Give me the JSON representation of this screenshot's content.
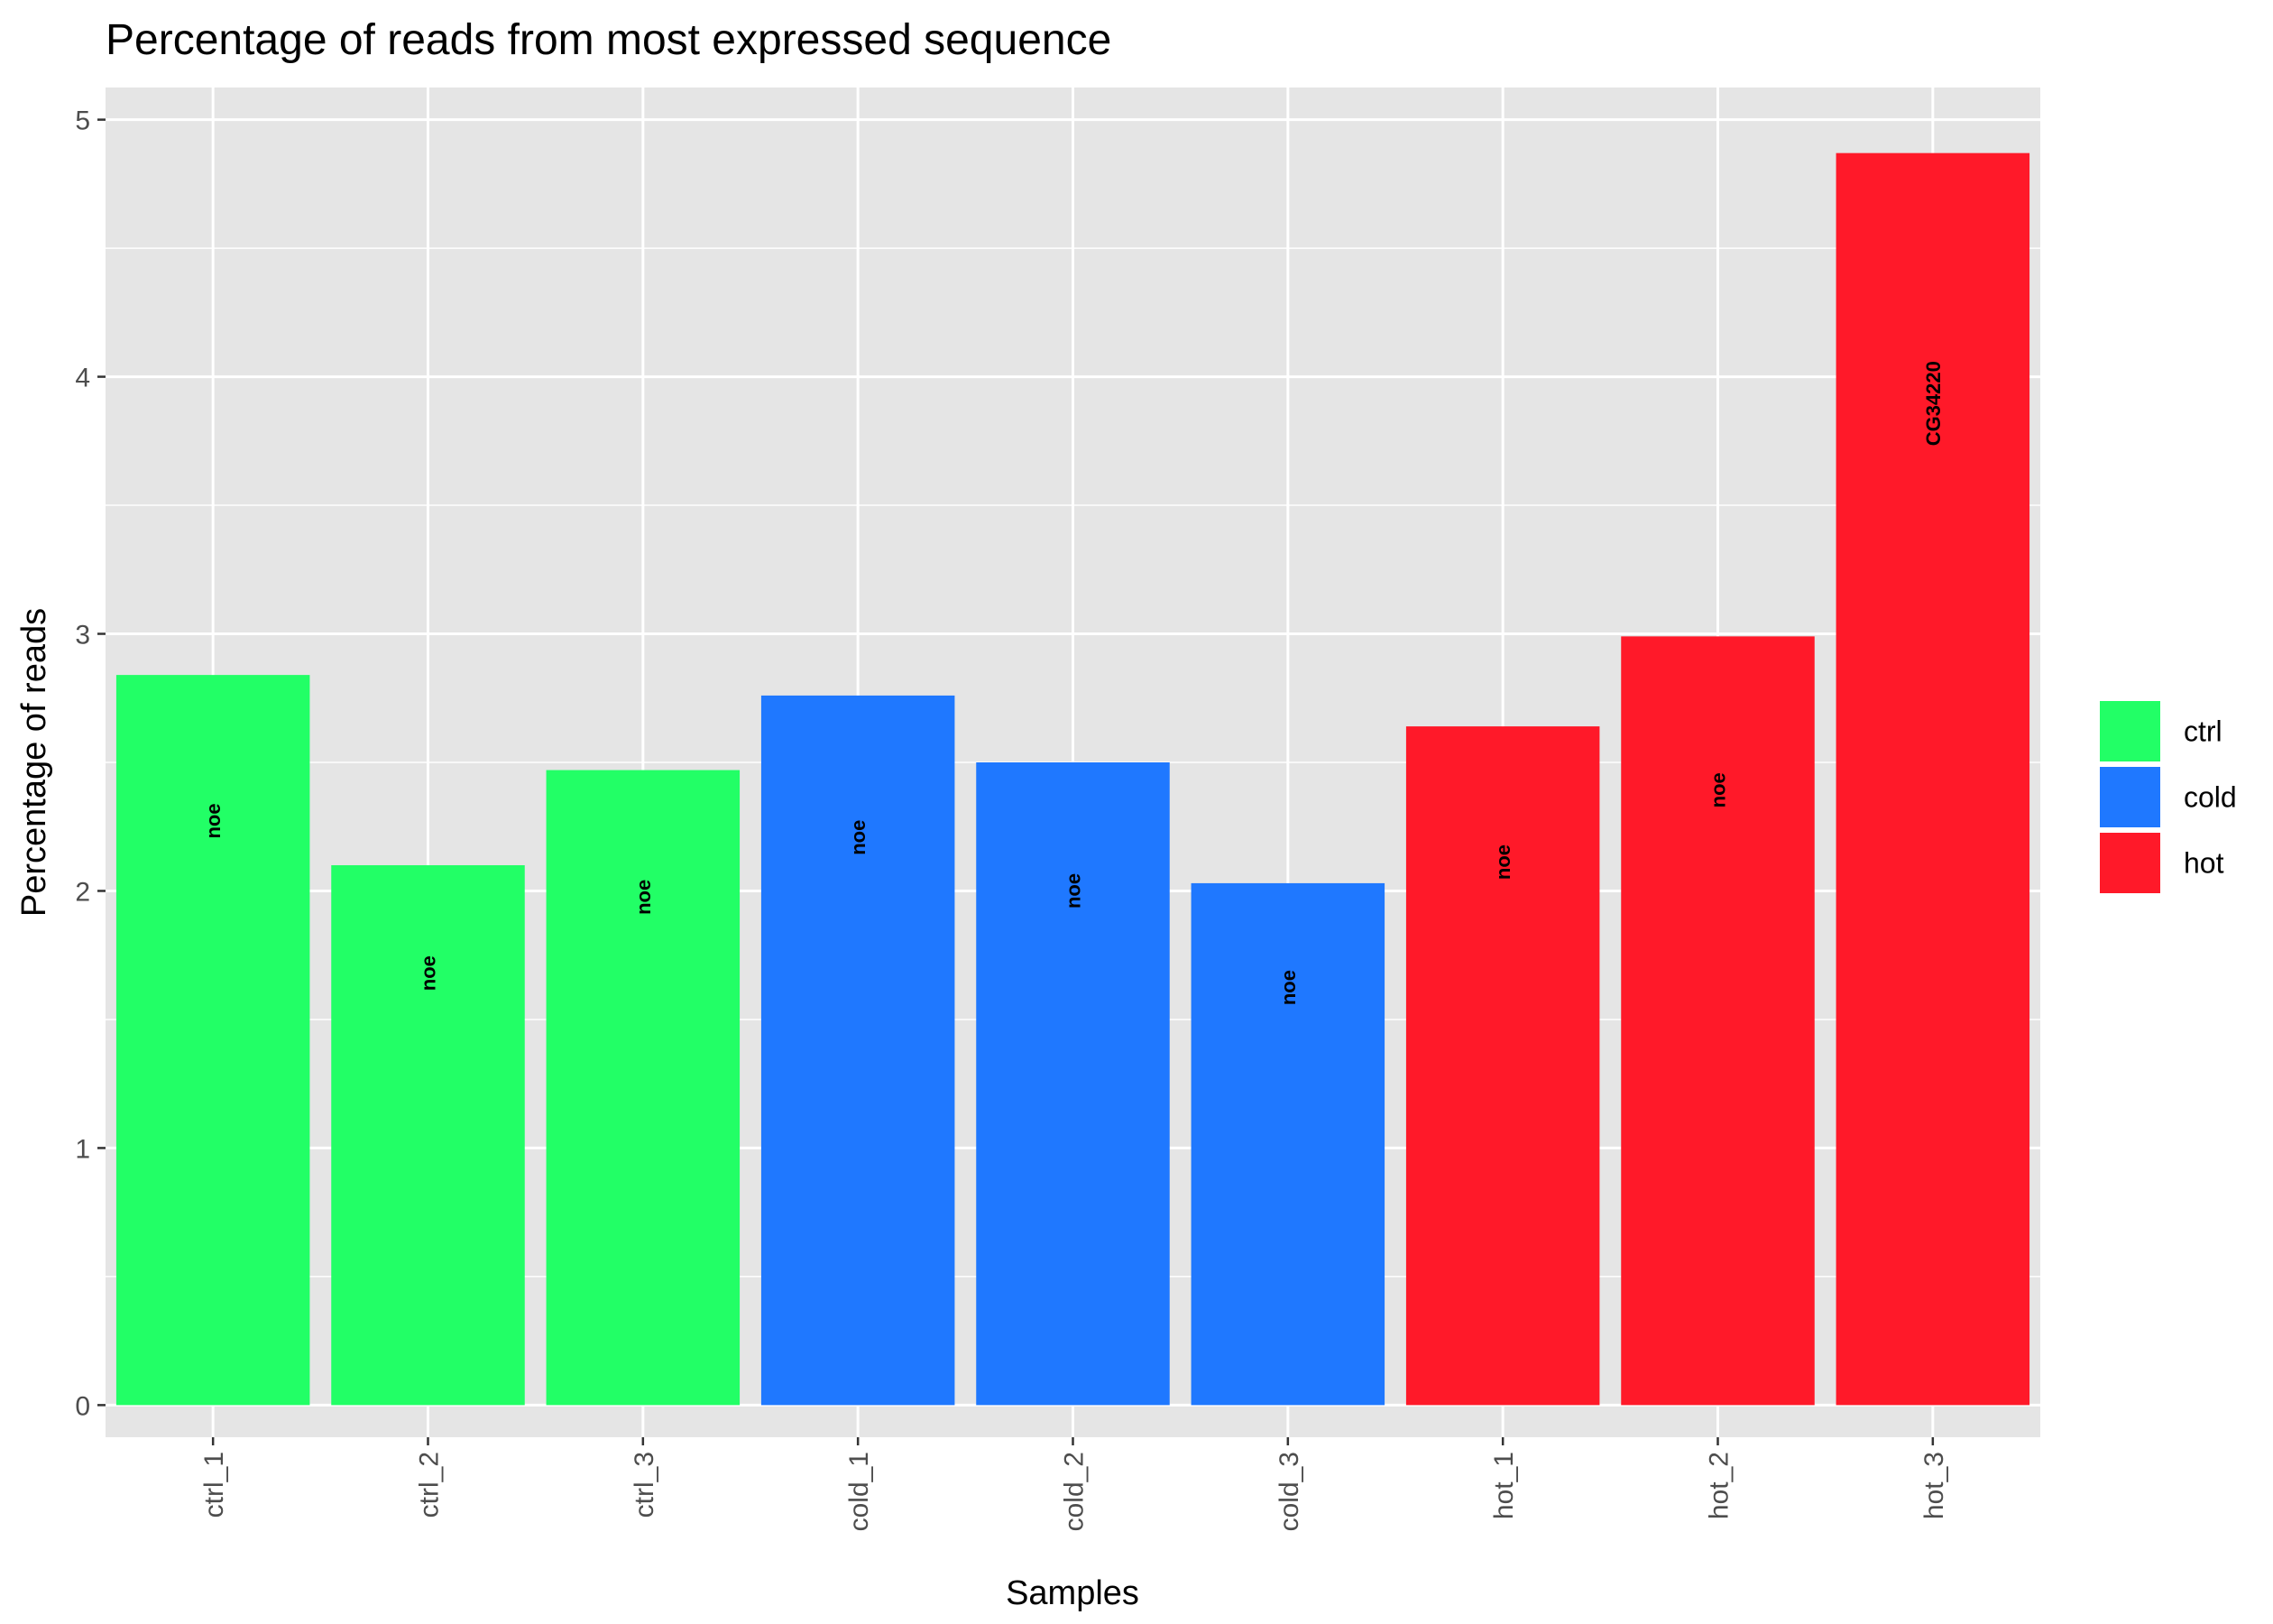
{
  "chart_data": {
    "type": "bar",
    "title": "Percentage of reads from most expressed sequence",
    "xlabel": "Samples",
    "ylabel": "Percentage of reads",
    "ylim": [
      0,
      5
    ],
    "yticks": [
      "0",
      "1",
      "2",
      "3",
      "4",
      "5"
    ],
    "categories": [
      "ctrl_1",
      "ctrl_2",
      "ctrl_3",
      "cold_1",
      "cold_2",
      "cold_3",
      "hot_1",
      "hot_2",
      "hot_3"
    ],
    "values": [
      2.84,
      2.1,
      2.47,
      2.76,
      2.5,
      2.03,
      2.64,
      2.99,
      4.87
    ],
    "groups": [
      "ctrl",
      "ctrl",
      "ctrl",
      "cold",
      "cold",
      "cold",
      "hot",
      "hot",
      "hot"
    ],
    "bar_labels": [
      "noe",
      "noe",
      "noe",
      "noe",
      "noe",
      "noe",
      "noe",
      "noe",
      "CG34220"
    ],
    "legend": {
      "position": "right",
      "items": [
        {
          "label": "ctrl",
          "color": "#22ff66"
        },
        {
          "label": "cold",
          "color": "#1f78ff"
        },
        {
          "label": "hot",
          "color": "#ff1929"
        }
      ]
    },
    "grid": true,
    "panel_background": "#e5e5e5",
    "grid_color": "#ffffff"
  }
}
